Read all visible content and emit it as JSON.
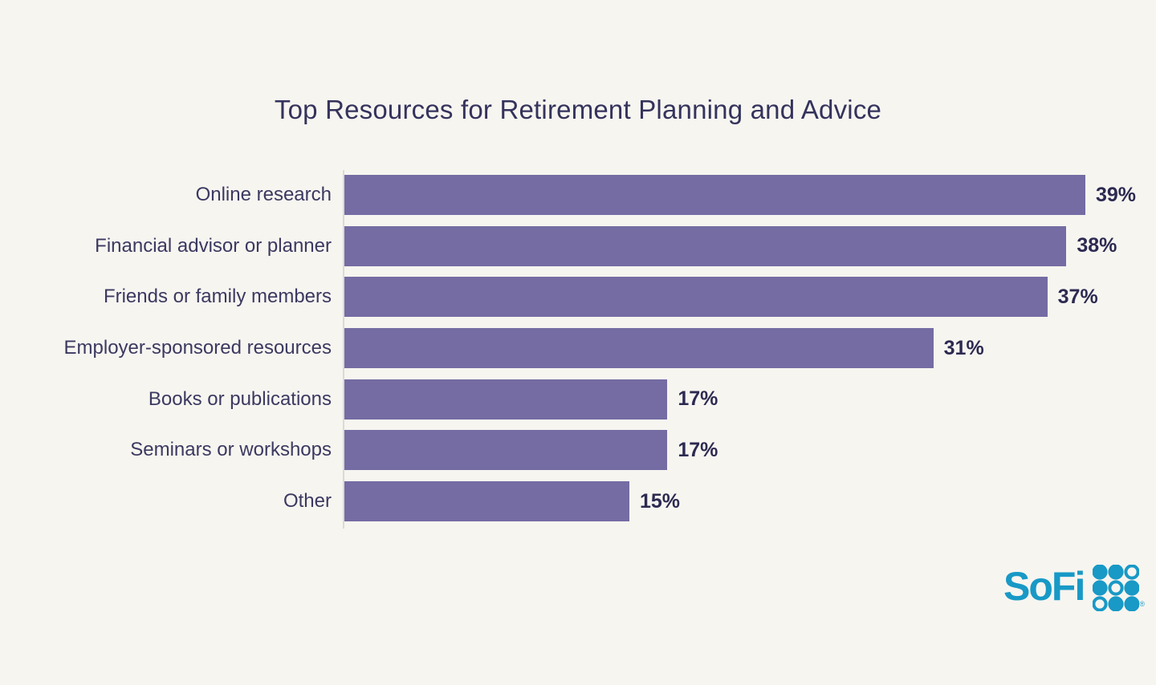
{
  "title": "Top Resources for Retirement Planning and Advice",
  "chart_data": {
    "type": "bar",
    "orientation": "horizontal",
    "title": "Top Resources for Retirement Planning and Advice",
    "categories": [
      "Online research",
      "Financial advisor or planner",
      "Friends or family members",
      "Employer-sponsored resources",
      "Books or publications",
      "Seminars or workshops",
      "Other"
    ],
    "values": [
      39,
      38,
      37,
      31,
      17,
      17,
      15
    ],
    "value_labels": [
      "39%",
      "38%",
      "37%",
      "31%",
      "17%",
      "17%",
      "15%"
    ],
    "xlabel": "",
    "ylabel": "",
    "xlim": [
      0,
      41.5
    ],
    "grid": false,
    "legend": "none",
    "bar_color": "#746CA3",
    "background_color": "#F7F5F0",
    "title_color": "#34335C",
    "label_color": "#3B3960",
    "value_color": "#2C2A51",
    "axis_line_color": "#DCDAD5"
  },
  "branding": {
    "logo_text": "SoFi",
    "logo_color": "#1899C6",
    "registered_mark": "®",
    "dot_grid": {
      "rows": 3,
      "cols": 3,
      "pattern": [
        [
          "filled",
          "filled",
          "outline"
        ],
        [
          "filled",
          "outline",
          "filled"
        ],
        [
          "outline",
          "filled",
          "filled"
        ]
      ]
    }
  }
}
